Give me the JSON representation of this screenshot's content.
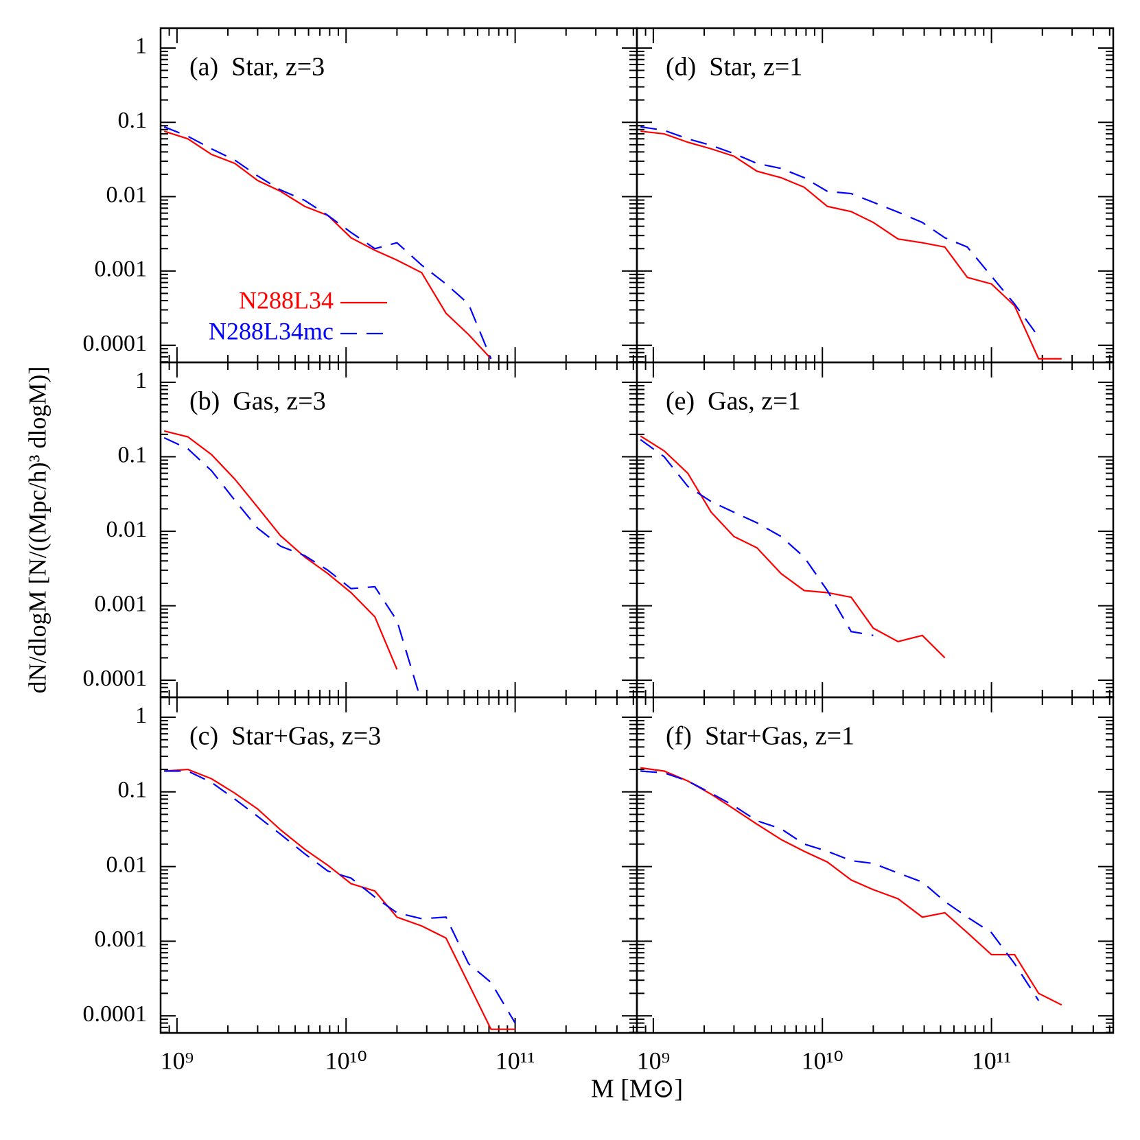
{
  "xlabel": "M [M⊙]",
  "ylabel": "dN/dlogM [N/((Mpc/h)³ dlogM)]",
  "chart_data": [
    {
      "type": "line",
      "title": "(a)  Star, z=3",
      "log_x": true,
      "log_y": true,
      "legend": "lower left",
      "show_xtick_labels": false,
      "show_ytick_labels": true,
      "x": [
        840000000,
        1160000000,
        1600000000,
        2200000000,
        3000000000,
        4100000000,
        5700000000,
        7800000000,
        10700000000,
        14800000000,
        20000000000,
        28000000000,
        39000000000,
        53000000000,
        72000000000,
        100000000000,
        137000000000,
        190000000000,
        260000000000
      ],
      "xlim": [
        800000000,
        525000000000
      ],
      "ylim": [
        5.9e-05,
        1.85
      ],
      "xticks": [
        {
          "value": 1000000000,
          "label": "10⁹"
        },
        {
          "value": 10000000000,
          "label": "10¹⁰"
        },
        {
          "value": 100000000000,
          "label": "10¹¹"
        }
      ],
      "yticks": [
        1,
        0.1,
        0.01,
        0.001,
        0.0001
      ],
      "series": [
        {
          "name": "N288L34",
          "color": "#ff0000",
          "dash": false,
          "values": [
            0.076,
            0.06,
            0.037,
            0.028,
            0.0165,
            0.0118,
            0.0074,
            0.0056,
            0.0028,
            0.0019,
            0.0014,
            0.00095,
            0.00027,
            0.00014,
            6.6e-05,
            null,
            null,
            null,
            null
          ]
        },
        {
          "name": "N288L34mc",
          "color": "#0000ff",
          "dash": true,
          "values": [
            0.087,
            0.065,
            0.044,
            0.031,
            0.019,
            0.0123,
            0.0089,
            0.0056,
            0.0033,
            0.002,
            0.0024,
            0.0012,
            0.00067,
            0.00036,
            6.6e-05,
            null,
            null,
            null,
            null
          ]
        }
      ]
    },
    {
      "type": "line",
      "title": "(b)  Gas, z=3",
      "log_x": true,
      "log_y": true,
      "show_xtick_labels": false,
      "show_ytick_labels": true,
      "x": [
        840000000,
        1160000000,
        1600000000,
        2200000000,
        3000000000,
        4100000000,
        5700000000,
        7800000000,
        10700000000,
        14800000000,
        20000000000,
        28000000000,
        39000000000,
        53000000000,
        72000000000,
        100000000000,
        137000000000,
        190000000000,
        260000000000
      ],
      "xlim": [
        800000000,
        525000000000
      ],
      "ylim": [
        5.9e-05,
        1.85
      ],
      "xticks": [
        {
          "value": 1000000000,
          "label": "10⁹"
        },
        {
          "value": 10000000000,
          "label": "10¹⁰"
        },
        {
          "value": 100000000000,
          "label": "10¹¹"
        }
      ],
      "yticks": [
        1,
        0.1,
        0.01,
        0.001,
        0.0001
      ],
      "series": [
        {
          "name": "N288L34",
          "color": "#ff0000",
          "dash": false,
          "values": [
            0.222,
            0.185,
            0.107,
            0.05,
            0.021,
            0.0087,
            0.0045,
            0.0027,
            0.0015,
            0.00071,
            0.00014,
            null,
            null,
            null,
            null,
            null,
            null,
            null,
            null
          ]
        },
        {
          "name": "N288L34mc",
          "color": "#0000ff",
          "dash": true,
          "values": [
            0.18,
            0.128,
            0.065,
            0.026,
            0.011,
            0.0063,
            0.0047,
            0.003,
            0.0017,
            0.0018,
            0.00063,
            5e-05,
            null,
            null,
            null,
            null,
            null,
            null,
            null
          ]
        }
      ]
    },
    {
      "type": "line",
      "title": "(c)  Star+Gas, z=3",
      "log_x": true,
      "log_y": true,
      "show_xtick_labels": true,
      "show_ytick_labels": true,
      "x": [
        840000000,
        1160000000,
        1600000000,
        2200000000,
        3000000000,
        4100000000,
        5700000000,
        7800000000,
        10700000000,
        14800000000,
        20000000000,
        28000000000,
        39000000000,
        53000000000,
        72000000000,
        100000000000,
        137000000000,
        190000000000,
        260000000000
      ],
      "xlim": [
        800000000,
        525000000000
      ],
      "ylim": [
        5.9e-05,
        1.85
      ],
      "xticks": [
        {
          "value": 1000000000,
          "label": "10⁹"
        },
        {
          "value": 10000000000,
          "label": "10¹⁰"
        },
        {
          "value": 100000000000,
          "label": "10¹¹"
        }
      ],
      "yticks": [
        1,
        0.1,
        0.01,
        0.001,
        0.0001
      ],
      "series": [
        {
          "name": "N288L34",
          "color": "#ff0000",
          "dash": false,
          "values": [
            0.19,
            0.2,
            0.15,
            0.096,
            0.059,
            0.031,
            0.017,
            0.0104,
            0.0059,
            0.0047,
            0.0021,
            0.0016,
            0.0011,
            0.00027,
            6.6e-05,
            6.6e-05,
            null,
            null,
            null
          ]
        },
        {
          "name": "N288L34mc",
          "color": "#0000ff",
          "dash": true,
          "values": [
            0.19,
            0.19,
            0.134,
            0.08,
            0.047,
            0.027,
            0.0148,
            0.0087,
            0.007,
            0.0039,
            0.0024,
            0.002,
            0.0021,
            0.0005,
            0.00028,
            8e-05,
            null,
            null,
            null
          ]
        }
      ]
    },
    {
      "type": "line",
      "title": "(d)  Star, z=1",
      "log_x": true,
      "log_y": true,
      "show_xtick_labels": false,
      "show_ytick_labels": false,
      "x": [
        840000000,
        1160000000,
        1600000000,
        2200000000,
        3000000000,
        4100000000,
        5700000000,
        7800000000,
        10700000000,
        14800000000,
        20000000000,
        28000000000,
        39000000000,
        53000000000,
        72000000000,
        100000000000,
        137000000000,
        190000000000,
        260000000000
      ],
      "xlim": [
        800000000,
        525000000000
      ],
      "ylim": [
        5.9e-05,
        1.85
      ],
      "xticks": [
        {
          "value": 1000000000,
          "label": "10⁹"
        },
        {
          "value": 10000000000,
          "label": "10¹⁰"
        },
        {
          "value": 100000000000,
          "label": "10¹¹"
        }
      ],
      "yticks": [
        1,
        0.1,
        0.01,
        0.001,
        0.0001
      ],
      "series": [
        {
          "name": "N288L34",
          "color": "#ff0000",
          "dash": false,
          "values": [
            0.076,
            0.07,
            0.054,
            0.044,
            0.035,
            0.022,
            0.018,
            0.0134,
            0.0074,
            0.0063,
            0.0045,
            0.0027,
            0.0024,
            0.0021,
            0.00082,
            0.00067,
            0.00034,
            6.6e-05,
            6.6e-05
          ]
        },
        {
          "name": "N288L34mc",
          "color": "#0000ff",
          "dash": true,
          "values": [
            0.087,
            0.078,
            0.06,
            0.049,
            0.038,
            0.028,
            0.024,
            0.018,
            0.0118,
            0.011,
            0.0084,
            0.0062,
            0.0045,
            0.0028,
            0.0021,
            0.00085,
            0.00036,
            0.00013,
            null
          ]
        }
      ]
    },
    {
      "type": "line",
      "title": "(e)  Gas, z=1",
      "log_x": true,
      "log_y": true,
      "show_xtick_labels": false,
      "show_ytick_labels": false,
      "x": [
        840000000,
        1160000000,
        1600000000,
        2200000000,
        3000000000,
        4100000000,
        5700000000,
        7800000000,
        10700000000,
        14800000000,
        20000000000,
        28000000000,
        39000000000,
        53000000000,
        72000000000,
        100000000000,
        137000000000,
        190000000000,
        260000000000
      ],
      "xlim": [
        800000000,
        525000000000
      ],
      "ylim": [
        5.9e-05,
        1.85
      ],
      "xticks": [
        {
          "value": 1000000000,
          "label": "10⁹"
        },
        {
          "value": 10000000000,
          "label": "10¹⁰"
        },
        {
          "value": 100000000000,
          "label": "10¹¹"
        }
      ],
      "yticks": [
        1,
        0.1,
        0.01,
        0.001,
        0.0001
      ],
      "series": [
        {
          "name": "N288L34",
          "color": "#ff0000",
          "dash": false,
          "values": [
            0.19,
            0.12,
            0.06,
            0.018,
            0.0085,
            0.006,
            0.0027,
            0.0016,
            0.0015,
            0.0013,
            0.0005,
            0.00033,
            0.0004,
            0.0002,
            null,
            null,
            null,
            null,
            null
          ]
        },
        {
          "name": "N288L34mc",
          "color": "#0000ff",
          "dash": true,
          "values": [
            0.17,
            0.1,
            0.04,
            0.025,
            0.018,
            0.013,
            0.0085,
            0.0045,
            0.0016,
            0.00045,
            0.0004,
            null,
            null,
            null,
            null,
            null,
            null,
            null,
            null
          ]
        }
      ]
    },
    {
      "type": "line",
      "title": "(f)  Star+Gas, z=1",
      "log_x": true,
      "log_y": true,
      "show_xtick_labels": true,
      "show_ytick_labels": false,
      "x": [
        840000000,
        1160000000,
        1600000000,
        2200000000,
        3000000000,
        4100000000,
        5700000000,
        7800000000,
        10700000000,
        14800000000,
        20000000000,
        28000000000,
        39000000000,
        53000000000,
        72000000000,
        100000000000,
        137000000000,
        190000000000,
        260000000000
      ],
      "xlim": [
        800000000,
        525000000000
      ],
      "ylim": [
        5.9e-05,
        1.85
      ],
      "xticks": [
        {
          "value": 1000000000,
          "label": "10⁹"
        },
        {
          "value": 10000000000,
          "label": "10¹⁰"
        },
        {
          "value": 100000000000,
          "label": "10¹¹"
        }
      ],
      "yticks": [
        1,
        0.1,
        0.01,
        0.001,
        0.0001
      ],
      "series": [
        {
          "name": "N288L34",
          "color": "#ff0000",
          "dash": false,
          "values": [
            0.21,
            0.19,
            0.14,
            0.093,
            0.059,
            0.037,
            0.023,
            0.016,
            0.0115,
            0.0066,
            0.0049,
            0.0037,
            0.0021,
            0.0024,
            0.0013,
            0.00066,
            0.00066,
            0.0002,
            0.00014
          ]
        },
        {
          "name": "N288L34mc",
          "color": "#0000ff",
          "dash": true,
          "values": [
            0.19,
            0.18,
            0.14,
            0.096,
            0.065,
            0.041,
            0.032,
            0.02,
            0.016,
            0.012,
            0.011,
            0.0082,
            0.0062,
            0.0034,
            0.0021,
            0.0013,
            0.0005,
            0.00016,
            null
          ]
        }
      ]
    }
  ]
}
